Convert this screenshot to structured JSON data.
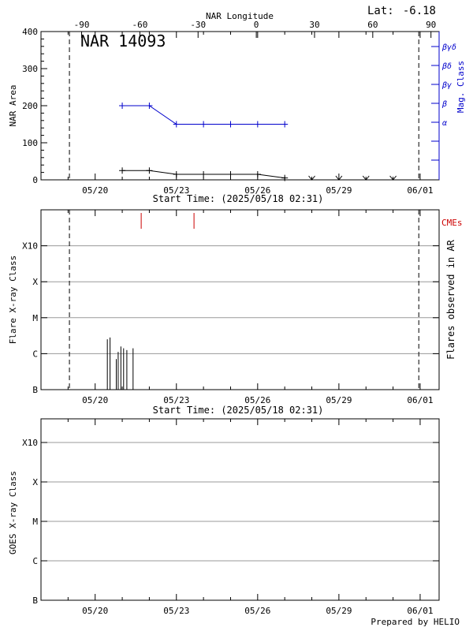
{
  "chart_data": [
    {
      "type": "line",
      "name": "nar-area-panel",
      "title": "NAR 14093",
      "latitude_label": "Lat:",
      "latitude_value": "-6.18",
      "top_axis_label": "NAR Longitude",
      "top_axis_ticks": [
        {
          "value": -90,
          "label": "-90"
        },
        {
          "value": -60,
          "label": "-60"
        },
        {
          "value": -30,
          "label": "-30"
        },
        {
          "value": 0,
          "label": "0"
        },
        {
          "value": 30,
          "label": "30"
        },
        {
          "value": 60,
          "label": "60"
        },
        {
          "value": 90,
          "label": "90"
        }
      ],
      "xlabel": "Start Time: (2025/05/18 02:31)",
      "xlim": [
        0,
        14.7
      ],
      "x_ticks": [
        {
          "value": 2,
          "label": "05/20"
        },
        {
          "value": 5,
          "label": "05/23"
        },
        {
          "value": 8,
          "label": "05/26"
        },
        {
          "value": 11,
          "label": "05/29"
        },
        {
          "value": 14,
          "label": "06/01"
        }
      ],
      "dashed_lines_x": [
        1.05,
        13.95
      ],
      "ylabel": "NAR Area",
      "ylim": [
        0,
        400
      ],
      "y_ticks": [
        0,
        100,
        200,
        300,
        400
      ],
      "right_axis_label": "Mag. Class",
      "right_axis_ticks": [
        "α",
        "β",
        "βγ",
        "βδ",
        "βγδ"
      ],
      "series": [
        {
          "name": "NAR Area",
          "color": "#000000",
          "x": [
            3.0,
            4.0,
            5.0,
            6.0,
            7.0,
            8.0,
            9.0
          ],
          "y": [
            25,
            25,
            15,
            15,
            15,
            15,
            5
          ]
        },
        {
          "name": "Missing area",
          "color": "#000000",
          "marker": "v",
          "x": [
            10.0,
            11.0,
            12.0,
            13.0
          ],
          "y": [
            0,
            0,
            0,
            0
          ]
        },
        {
          "name": "Mag. Class",
          "color": "#0000cc",
          "x": [
            3.0,
            4.0,
            5.0,
            6.0,
            7.0,
            8.0,
            9.0
          ],
          "y": [
            200,
            200,
            150,
            150,
            150,
            150,
            150
          ]
        }
      ]
    },
    {
      "type": "bar",
      "name": "flare-class-panel",
      "xlabel": "Start Time: (2025/05/18 02:31)",
      "ylabel": "Flare X-ray Class",
      "right_axis_label": "Flares observed in AR",
      "cme_label": "CMEs",
      "cme_color": "#cc0000",
      "xlim": [
        0,
        14.7
      ],
      "x_ticks": [
        {
          "value": 2,
          "label": "05/20"
        },
        {
          "value": 5,
          "label": "05/23"
        },
        {
          "value": 8,
          "label": "05/26"
        },
        {
          "value": 11,
          "label": "05/29"
        },
        {
          "value": 14,
          "label": "06/01"
        }
      ],
      "dashed_lines_x": [
        1.05,
        13.95
      ],
      "ylim": [
        0,
        5
      ],
      "y_ticks": [
        {
          "value": 0,
          "label": "B",
          "grid": false
        },
        {
          "value": 1,
          "label": "C",
          "grid": true
        },
        {
          "value": 2,
          "label": "M",
          "grid": true
        },
        {
          "value": 3,
          "label": "X",
          "grid": true
        },
        {
          "value": 4,
          "label": "X10",
          "grid": true
        }
      ],
      "flares": [
        {
          "x": 2.45,
          "y": 1.4
        },
        {
          "x": 2.55,
          "y": 1.45
        },
        {
          "x": 2.78,
          "y": 0.85
        },
        {
          "x": 2.85,
          "y": 1.05
        },
        {
          "x": 2.95,
          "y": 1.2
        },
        {
          "x": 3.05,
          "y": 1.15
        },
        {
          "x": 3.17,
          "y": 1.1
        },
        {
          "x": 3.4,
          "y": 1.15
        }
      ],
      "cmes": [
        3.7,
        5.65
      ]
    },
    {
      "type": "bar",
      "name": "goes-class-panel",
      "xlabel": "",
      "ylabel": "GOES X-ray Class",
      "xlim": [
        0,
        14.7
      ],
      "x_ticks": [
        {
          "value": 2,
          "label": "05/20"
        },
        {
          "value": 5,
          "label": "05/23"
        },
        {
          "value": 8,
          "label": "05/26"
        },
        {
          "value": 11,
          "label": "05/29"
        },
        {
          "value": 14,
          "label": "06/01"
        }
      ],
      "ylim": [
        0,
        4.6
      ],
      "y_ticks": [
        {
          "value": 0,
          "label": "B",
          "grid": false
        },
        {
          "value": 1,
          "label": "C",
          "grid": true
        },
        {
          "value": 2,
          "label": "M",
          "grid": true
        },
        {
          "value": 3,
          "label": "X",
          "grid": true
        },
        {
          "value": 4,
          "label": "X10",
          "grid": true
        }
      ],
      "values": []
    }
  ],
  "footer": {
    "prepared_by": "Prepared by HELIO"
  }
}
